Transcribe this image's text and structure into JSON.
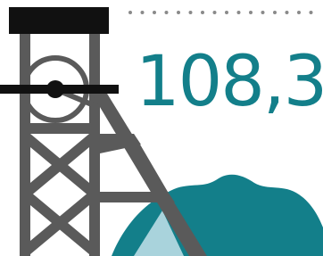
{
  "figure": {
    "value_text": "108,3"
  }
}
